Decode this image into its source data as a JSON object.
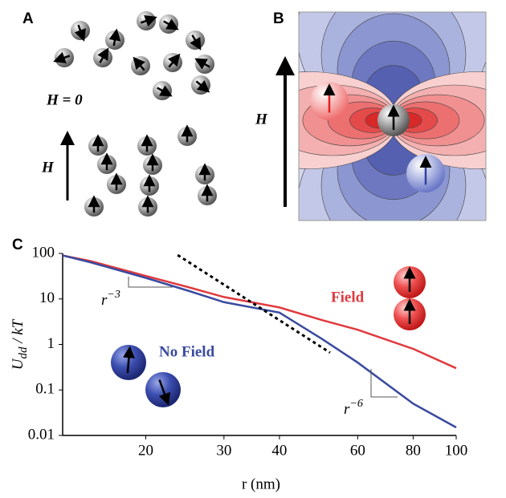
{
  "panel_a": {
    "label": "A",
    "zero_field": "H = 0",
    "field": "H"
  },
  "panel_b": {
    "label": "B",
    "field": "H"
  },
  "chart_data": {
    "type": "line",
    "panel_label": "C",
    "x_label": "r (nm)",
    "y_label": {
      "base": "U",
      "sub": "dd",
      "rest": " / kT"
    },
    "xlog": true,
    "ylog": true,
    "xlim": [
      13,
      100
    ],
    "ylim": [
      0.01,
      100
    ],
    "xticks": [
      20,
      30,
      40,
      60,
      80,
      100
    ],
    "yticks": [
      100,
      10,
      1,
      0.1,
      0.01
    ],
    "x": [
      13,
      15,
      20,
      25,
      30,
      40,
      50,
      60,
      80,
      100
    ],
    "series": [
      {
        "name": "Field",
        "color": "#e03a3e",
        "values": [
          90,
          68,
          32,
          18,
          11,
          6.5,
          3.4,
          2.1,
          0.8,
          0.3
        ]
      },
      {
        "name": "No Field",
        "color": "#3a4aa0",
        "values": [
          90,
          64,
          29,
          15,
          8.5,
          5,
          1.3,
          0.4,
          0.05,
          0.015
        ]
      }
    ],
    "asymptote": {
      "color": "#000000",
      "x": [
        23.6,
        52
      ],
      "values": [
        92,
        0.66
      ]
    },
    "annotations": [
      {
        "text": "r",
        "sup": "−3"
      },
      {
        "text": "r",
        "sup": "−6"
      }
    ]
  }
}
